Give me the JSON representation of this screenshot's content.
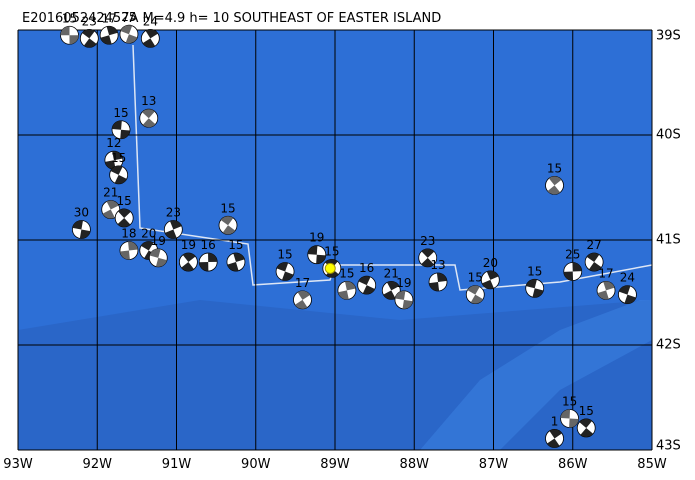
{
  "map": {
    "title": "E201605242457A M=4.9 h= 10 SOUTHEAST OF EASTER ISLAND",
    "lonlim": [
      -93,
      -85
    ],
    "latlim": [
      -43,
      -39
    ],
    "lonticks": [
      {
        "value": -93,
        "label": "93W"
      },
      {
        "value": -92,
        "label": "92W"
      },
      {
        "value": -91,
        "label": "91W"
      },
      {
        "value": -90,
        "label": "90W"
      },
      {
        "value": -89,
        "label": "89W"
      },
      {
        "value": -88,
        "label": "88W"
      },
      {
        "value": -87,
        "label": "87W"
      },
      {
        "value": -86,
        "label": "86W"
      },
      {
        "value": -85,
        "label": "85W"
      }
    ],
    "latticks": [
      {
        "value": -39,
        "label": "39S"
      },
      {
        "value": -40,
        "label": "40S"
      },
      {
        "value": -41,
        "label": "41S"
      },
      {
        "value": -42,
        "label": "42S"
      },
      {
        "value": -43,
        "label": "43S"
      }
    ],
    "main_event": {
      "lon": -89.06,
      "lat": -41.27,
      "color": "#ffff00"
    },
    "events": [
      {
        "lon": -92.35,
        "lat": -39.05,
        "label": "15"
      },
      {
        "lon": -92.1,
        "lat": -39.08,
        "label": "23"
      },
      {
        "lon": -91.85,
        "lat": -39.05,
        "label": "17"
      },
      {
        "lon": -91.6,
        "lat": -39.04,
        "label": "25"
      },
      {
        "lon": -91.33,
        "lat": -39.08,
        "label": "24"
      },
      {
        "lon": -91.7,
        "lat": -39.95,
        "label": "15"
      },
      {
        "lon": -91.35,
        "lat": -39.84,
        "label": "13"
      },
      {
        "lon": -91.79,
        "lat": -40.24,
        "label": "12"
      },
      {
        "lon": -91.73,
        "lat": -40.38,
        "label": "15"
      },
      {
        "lon": -91.83,
        "lat": -40.71,
        "label": "21"
      },
      {
        "lon": -92.2,
        "lat": -40.9,
        "label": "30"
      },
      {
        "lon": -91.66,
        "lat": -40.79,
        "label": "15"
      },
      {
        "lon": -91.6,
        "lat": -41.1,
        "label": "18"
      },
      {
        "lon": -91.35,
        "lat": -41.1,
        "label": "20"
      },
      {
        "lon": -91.04,
        "lat": -40.9,
        "label": "23"
      },
      {
        "lon": -91.23,
        "lat": -41.17,
        "label": "19"
      },
      {
        "lon": -90.85,
        "lat": -41.21,
        "label": "19"
      },
      {
        "lon": -90.6,
        "lat": -41.21,
        "label": "16"
      },
      {
        "lon": -90.35,
        "lat": -40.86,
        "label": "15"
      },
      {
        "lon": -90.25,
        "lat": -41.21,
        "label": "15"
      },
      {
        "lon": -89.63,
        "lat": -41.3,
        "label": "15"
      },
      {
        "lon": -89.41,
        "lat": -41.57,
        "label": "17"
      },
      {
        "lon": -89.23,
        "lat": -41.14,
        "label": "19"
      },
      {
        "lon": -89.04,
        "lat": -41.27,
        "label": "15"
      },
      {
        "lon": -88.85,
        "lat": -41.48,
        "label": "15"
      },
      {
        "lon": -88.6,
        "lat": -41.43,
        "label": "16"
      },
      {
        "lon": -88.29,
        "lat": -41.48,
        "label": "21"
      },
      {
        "lon": -88.13,
        "lat": -41.57,
        "label": "19"
      },
      {
        "lon": -87.83,
        "lat": -41.17,
        "label": "23"
      },
      {
        "lon": -87.7,
        "lat": -41.4,
        "label": "13"
      },
      {
        "lon": -87.23,
        "lat": -41.52,
        "label": "15"
      },
      {
        "lon": -87.04,
        "lat": -41.38,
        "label": "20"
      },
      {
        "lon": -86.48,
        "lat": -41.46,
        "label": "15"
      },
      {
        "lon": -86.23,
        "lat": -40.48,
        "label": "15"
      },
      {
        "lon": -86.0,
        "lat": -41.3,
        "label": "25"
      },
      {
        "lon": -85.73,
        "lat": -41.21,
        "label": "27"
      },
      {
        "lon": -85.58,
        "lat": -41.48,
        "label": "17"
      },
      {
        "lon": -85.31,
        "lat": -41.52,
        "label": "24"
      },
      {
        "lon": -86.23,
        "lat": -42.89,
        "label": "1"
      },
      {
        "lon": -86.04,
        "lat": -42.7,
        "label": "15"
      },
      {
        "lon": -85.83,
        "lat": -42.79,
        "label": "15"
      }
    ]
  }
}
